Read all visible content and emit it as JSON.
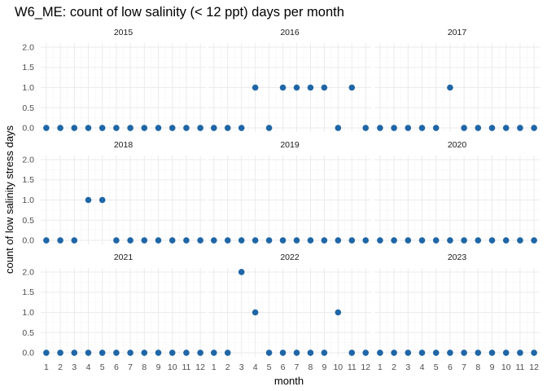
{
  "chart_data": {
    "type": "scatter",
    "title": "W6_ME: count of low salinity (< 12 ppt) days per month",
    "xlabel": "month",
    "ylabel": "count of low salinity stress days",
    "x_ticks": [
      1,
      2,
      3,
      4,
      5,
      6,
      7,
      8,
      9,
      10,
      11,
      12
    ],
    "y_ticks": [
      "0.0",
      "0.5",
      "1.0",
      "1.5",
      "2.0"
    ],
    "xlim": [
      0.6,
      12.4
    ],
    "ylim": [
      -0.1,
      2.1
    ],
    "point_color": "#1f66a6",
    "grid": true,
    "facets": [
      {
        "label": "2015",
        "x": [
          1,
          2,
          3,
          4,
          5,
          6,
          7,
          8,
          9,
          10,
          11,
          12
        ],
        "y": [
          0,
          0,
          0,
          0,
          0,
          0,
          0,
          0,
          0,
          0,
          0,
          0
        ]
      },
      {
        "label": "2016",
        "x": [
          1,
          2,
          3,
          4,
          5,
          6,
          7,
          8,
          9,
          10,
          11,
          12
        ],
        "y": [
          0,
          0,
          0,
          1,
          0,
          1,
          1,
          1,
          1,
          0,
          1,
          0
        ]
      },
      {
        "label": "2017",
        "x": [
          1,
          2,
          3,
          4,
          5,
          6,
          7,
          8,
          9,
          10,
          11,
          12
        ],
        "y": [
          0,
          0,
          0,
          0,
          0,
          1,
          0,
          0,
          0,
          0,
          0,
          0
        ]
      },
      {
        "label": "2018",
        "x": [
          1,
          2,
          3,
          4,
          5,
          6,
          7,
          8,
          9,
          10,
          11,
          12
        ],
        "y": [
          0,
          0,
          0,
          1,
          1,
          0,
          0,
          0,
          0,
          0,
          0,
          0
        ]
      },
      {
        "label": "2019",
        "x": [
          1,
          2,
          3,
          4,
          5,
          6,
          7,
          8,
          9,
          10,
          11,
          12
        ],
        "y": [
          0,
          0,
          0,
          0,
          0,
          0,
          0,
          0,
          0,
          0,
          0,
          0
        ]
      },
      {
        "label": "2020",
        "x": [
          1,
          2,
          3,
          4,
          5,
          6,
          7,
          8,
          9,
          10,
          11,
          12
        ],
        "y": [
          0,
          0,
          0,
          0,
          0,
          0,
          0,
          0,
          0,
          0,
          0,
          0
        ]
      },
      {
        "label": "2021",
        "x": [
          1,
          2,
          3,
          4,
          5,
          6,
          7,
          8,
          9,
          10,
          11,
          12
        ],
        "y": [
          0,
          0,
          0,
          0,
          0,
          0,
          0,
          0,
          0,
          0,
          0,
          0
        ]
      },
      {
        "label": "2022",
        "x": [
          1,
          2,
          3,
          4,
          5,
          6,
          7,
          8,
          9,
          10,
          11,
          12
        ],
        "y": [
          0,
          0,
          2,
          1,
          0,
          0,
          0,
          0,
          0,
          1,
          0,
          0
        ]
      },
      {
        "label": "2023",
        "x": [
          1,
          2,
          3,
          4,
          5,
          6,
          7,
          8,
          9,
          10,
          11,
          12
        ],
        "y": [
          0,
          0,
          0,
          0,
          0,
          0,
          0,
          0,
          0,
          0,
          0,
          0
        ]
      }
    ]
  }
}
